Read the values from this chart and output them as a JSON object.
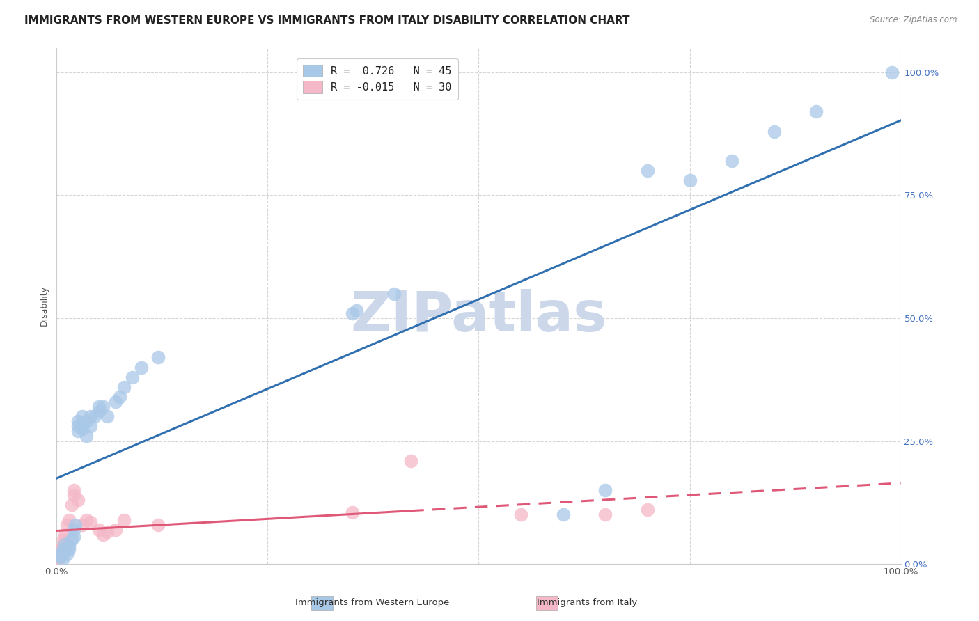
{
  "title": "IMMIGRANTS FROM WESTERN EUROPE VS IMMIGRANTS FROM ITALY DISABILITY CORRELATION CHART",
  "source": "Source: ZipAtlas.com",
  "ylabel": "Disability",
  "legend_blue_label": "Immigrants from Western Europe",
  "legend_pink_label": "Immigrants from Italy",
  "R_blue": 0.726,
  "N_blue": 45,
  "R_pink": -0.015,
  "N_pink": 30,
  "blue_color": "#a8c8e8",
  "pink_color": "#f4b8c8",
  "blue_line_color": "#3070b0",
  "pink_line_color": "#e05878",
  "watermark": "ZIPatlas",
  "blue_points": [
    [
      0.3,
      2.0
    ],
    [
      0.5,
      1.5
    ],
    [
      0.7,
      1.0
    ],
    [
      0.8,
      3.0
    ],
    [
      1.0,
      2.5
    ],
    [
      1.0,
      4.0
    ],
    [
      1.2,
      2.0
    ],
    [
      1.5,
      3.0
    ],
    [
      1.5,
      3.5
    ],
    [
      1.8,
      5.0
    ],
    [
      2.0,
      5.5
    ],
    [
      2.0,
      7.0
    ],
    [
      2.2,
      8.0
    ],
    [
      2.5,
      27.0
    ],
    [
      2.5,
      28.0
    ],
    [
      2.5,
      29.0
    ],
    [
      3.0,
      27.5
    ],
    [
      3.0,
      28.5
    ],
    [
      3.0,
      30.0
    ],
    [
      3.5,
      26.0
    ],
    [
      3.5,
      29.0
    ],
    [
      4.0,
      28.0
    ],
    [
      4.0,
      30.0
    ],
    [
      4.5,
      30.0
    ],
    [
      5.0,
      31.0
    ],
    [
      5.0,
      32.0
    ],
    [
      5.5,
      32.0
    ],
    [
      6.0,
      30.0
    ],
    [
      7.0,
      33.0
    ],
    [
      7.5,
      34.0
    ],
    [
      8.0,
      36.0
    ],
    [
      9.0,
      38.0
    ],
    [
      10.0,
      40.0
    ],
    [
      12.0,
      42.0
    ],
    [
      35.0,
      51.0
    ],
    [
      35.5,
      51.5
    ],
    [
      40.0,
      55.0
    ],
    [
      60.0,
      10.0
    ],
    [
      65.0,
      15.0
    ],
    [
      70.0,
      80.0
    ],
    [
      75.0,
      78.0
    ],
    [
      80.0,
      82.0
    ],
    [
      85.0,
      88.0
    ],
    [
      90.0,
      92.0
    ],
    [
      99.0,
      100.0
    ]
  ],
  "pink_points": [
    [
      0.2,
      1.0
    ],
    [
      0.3,
      2.0
    ],
    [
      0.4,
      1.5
    ],
    [
      0.5,
      3.0
    ],
    [
      0.6,
      2.5
    ],
    [
      0.8,
      4.0
    ],
    [
      0.8,
      5.0
    ],
    [
      1.0,
      3.5
    ],
    [
      1.0,
      6.0
    ],
    [
      1.2,
      4.0
    ],
    [
      1.2,
      8.0
    ],
    [
      1.5,
      9.0
    ],
    [
      1.8,
      12.0
    ],
    [
      2.0,
      14.0
    ],
    [
      2.0,
      15.0
    ],
    [
      2.5,
      13.0
    ],
    [
      3.0,
      8.0
    ],
    [
      3.5,
      9.0
    ],
    [
      4.0,
      8.5
    ],
    [
      5.0,
      7.0
    ],
    [
      5.5,
      6.0
    ],
    [
      6.0,
      6.5
    ],
    [
      7.0,
      7.0
    ],
    [
      8.0,
      9.0
    ],
    [
      12.0,
      8.0
    ],
    [
      35.0,
      10.5
    ],
    [
      42.0,
      21.0
    ],
    [
      55.0,
      10.0
    ],
    [
      65.0,
      10.0
    ],
    [
      70.0,
      11.0
    ]
  ],
  "xlim": [
    0,
    100
  ],
  "ylim": [
    0,
    105
  ],
  "ytick_labels": [
    "0.0%",
    "25.0%",
    "50.0%",
    "75.0%",
    "100.0%"
  ],
  "ytick_values": [
    0,
    25,
    50,
    75,
    100
  ],
  "xtick_labels": [
    "0.0%",
    "100.0%"
  ],
  "xtick_values": [
    0,
    100
  ],
  "grid_color": "#cccccc",
  "background_color": "#ffffff",
  "title_fontsize": 11,
  "axis_label_fontsize": 9,
  "tick_fontsize": 9.5,
  "tick_color": "#4472c4",
  "watermark_color": "#ccd8ea",
  "watermark_fontsize": 58
}
